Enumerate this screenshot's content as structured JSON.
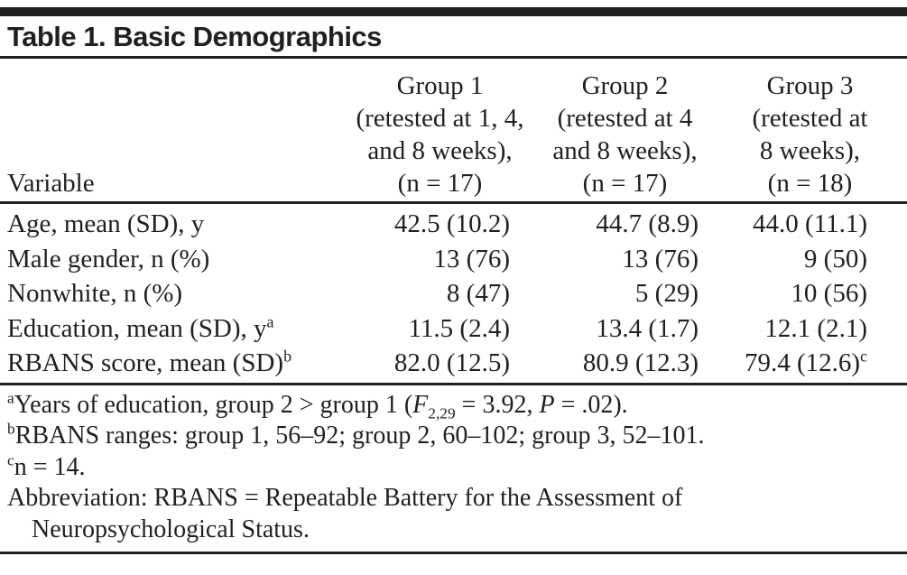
{
  "title": "Table 1. Basic Demographics",
  "header": {
    "variable": "Variable",
    "group1": [
      "Group 1",
      "(retested at 1, 4,",
      "and 8 weeks),",
      "(n = 17)"
    ],
    "group2": [
      "Group 2",
      "(retested at 4",
      "and 8 weeks),",
      "(n = 17)"
    ],
    "group3": [
      "Group 3",
      "(retested at",
      "8 weeks),",
      "(n = 18)"
    ]
  },
  "rows": [
    {
      "variable": "Age, mean (SD), y",
      "variable_sup": "",
      "g1": "42.5 (10.2)",
      "g2": "44.7 (8.9)",
      "g3": "44.0 (11.1)",
      "g3_sup": ""
    },
    {
      "variable": "Male gender, n (%)",
      "variable_sup": "",
      "g1": "13 (76)",
      "g2": "13 (76)",
      "g3": "9 (50)",
      "g3_sup": ""
    },
    {
      "variable": "Nonwhite, n (%)",
      "variable_sup": "",
      "g1": "8 (47)",
      "g2": "5 (29)",
      "g3": "10 (56)",
      "g3_sup": ""
    },
    {
      "variable": "Education, mean (SD), y",
      "variable_sup": "a",
      "g1": "11.5 (2.4)",
      "g2": "13.4 (1.7)",
      "g3": "12.1 (2.1)",
      "g3_sup": ""
    },
    {
      "variable": "RBANS score, mean (SD)",
      "variable_sup": "b",
      "g1": "82.0 (12.5)",
      "g2": "80.9 (12.3)",
      "g3": "79.4 (12.6)",
      "g3_sup": "c"
    }
  ],
  "footnotes": {
    "a": {
      "marker": "a",
      "pre": "Years of education, group 2 > group 1 (",
      "stat_f": "F",
      "stat_sub": "2,29",
      "mid": " = 3.92, ",
      "stat_p": "P",
      "post": " = .02)."
    },
    "b": {
      "marker": "b",
      "text": "RBANS ranges: group 1, 56–92; group 2, 60–102; group 3, 52–101."
    },
    "c": {
      "marker": "c",
      "text": "n = 14."
    },
    "abbreviation_line1": "Abbreviation: RBANS = Repeatable Battery for the Assessment of",
    "abbreviation_line2": "Neuropsychological Status."
  },
  "colors": {
    "text": "#231f20",
    "rule": "#231f20",
    "background": "#ffffff"
  }
}
